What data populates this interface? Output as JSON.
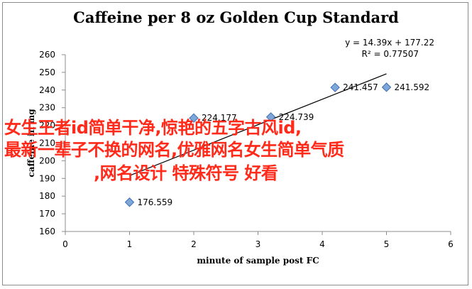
{
  "chart_data": {
    "type": "scatter",
    "title": "Caffeine per 8 oz Golden Cup Standard",
    "xlabel": "minute of sample post FC",
    "ylabel": "caffeine in mg",
    "xlim": [
      0,
      6
    ],
    "ylim": [
      160,
      260
    ],
    "x_ticks": [
      "0",
      "1",
      "2",
      "3",
      "4",
      "5",
      "6"
    ],
    "y_ticks": [
      "160",
      "170",
      "180",
      "190",
      "200",
      "210",
      "220",
      "230",
      "240",
      "250",
      "260"
    ],
    "grid": false,
    "points": [
      {
        "x": 1,
        "y": 176.559,
        "label": "176.559"
      },
      {
        "x": 2,
        "y": 224.177,
        "label": "224.177"
      },
      {
        "x": 3.2,
        "y": 224.739,
        "label": "224.739"
      },
      {
        "x": 4.2,
        "y": 241.457,
        "label": "241.457"
      },
      {
        "x": 5,
        "y": 241.592,
        "label": "241.592"
      }
    ],
    "trendline": {
      "slope": 14.39,
      "intercept": 177.22,
      "x_range": [
        1,
        5
      ],
      "equation": "y = 14.39x + 177.22",
      "r_squared": "R² = 0.77507"
    },
    "marker_color": "#7ea6d9",
    "marker_edge_color": "#3e6fb3"
  },
  "overlay": {
    "line1": "女生王者id简单干净,惊艳的五字古风id,",
    "line2": "最新一辈子不换的网名,优雅网名女生简单气质",
    "line3": ",网名设计 特殊符号 好看",
    "color": "#ff2a1a"
  }
}
